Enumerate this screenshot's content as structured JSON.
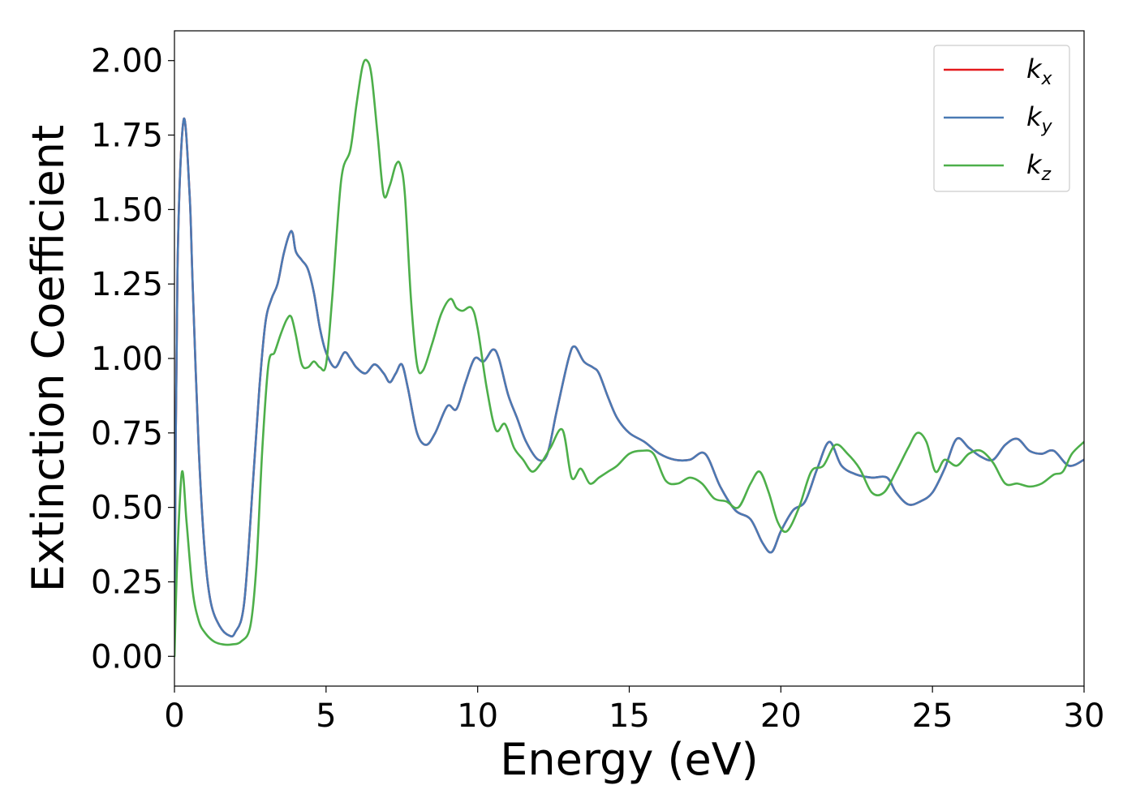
{
  "chart_data": {
    "type": "line",
    "title": "",
    "xlabel": "Energy (eV)",
    "ylabel": "Extinction Coefficient",
    "xlim": [
      0,
      30
    ],
    "ylim": [
      -0.1,
      2.1
    ],
    "xticks": [
      0,
      5,
      10,
      15,
      20,
      25,
      30
    ],
    "xtick_labels": [
      "0",
      "5",
      "10",
      "15",
      "20",
      "25",
      "30"
    ],
    "yticks": [
      0,
      0.25,
      0.5,
      0.75,
      1.0,
      1.25,
      1.5,
      1.75,
      2.0
    ],
    "ytick_labels": [
      "0.00",
      "0.25",
      "0.50",
      "0.75",
      "1.00",
      "1.25",
      "1.50",
      "1.75",
      "2.00"
    ],
    "grid": false,
    "legend_position": "top-right",
    "series": [
      {
        "name": "k_x",
        "legend_main": "k",
        "legend_sub": "x",
        "color": "#e41a1c",
        "x": [
          0,
          0.1,
          0.3,
          0.5,
          0.6,
          0.8,
          1.0,
          1.2,
          1.5,
          1.8,
          2.0,
          2.3,
          2.6,
          2.8,
          3.0,
          3.2,
          3.4,
          3.6,
          3.8,
          3.9,
          4.0,
          4.2,
          4.4,
          4.6,
          4.8,
          5.0,
          5.3,
          5.6,
          5.8,
          6.0,
          6.3,
          6.6,
          6.9,
          7.1,
          7.3,
          7.5,
          7.7,
          8.0,
          8.3,
          8.6,
          9.0,
          9.3,
          9.6,
          9.9,
          10.2,
          10.5,
          10.7,
          11.0,
          11.3,
          11.6,
          12.0,
          12.3,
          12.6,
          13.0,
          13.2,
          13.5,
          13.8,
          14.0,
          14.3,
          14.6,
          15.0,
          15.5,
          16.0,
          16.5,
          17.0,
          17.5,
          18.0,
          18.5,
          19.0,
          19.4,
          19.7,
          20.0,
          20.4,
          20.8,
          21.2,
          21.6,
          22.0,
          22.5,
          23.0,
          23.5,
          23.8,
          24.2,
          24.6,
          25.0,
          25.4,
          25.8,
          26.2,
          26.6,
          27.0,
          27.4,
          27.8,
          28.2,
          28.6,
          29.0,
          29.5,
          30.0
        ],
        "y": [
          0.1,
          1.3,
          1.8,
          1.55,
          1.25,
          0.7,
          0.35,
          0.18,
          0.1,
          0.07,
          0.08,
          0.18,
          0.6,
          0.9,
          1.12,
          1.2,
          1.25,
          1.35,
          1.42,
          1.42,
          1.36,
          1.33,
          1.3,
          1.22,
          1.1,
          1.02,
          0.97,
          1.02,
          1.0,
          0.97,
          0.95,
          0.98,
          0.95,
          0.92,
          0.95,
          0.98,
          0.9,
          0.75,
          0.71,
          0.75,
          0.84,
          0.83,
          0.92,
          1.0,
          0.99,
          1.03,
          1.0,
          0.88,
          0.8,
          0.72,
          0.66,
          0.68,
          0.82,
          1.0,
          1.04,
          0.99,
          0.97,
          0.95,
          0.87,
          0.8,
          0.75,
          0.72,
          0.68,
          0.66,
          0.66,
          0.68,
          0.57,
          0.49,
          0.46,
          0.38,
          0.35,
          0.42,
          0.49,
          0.52,
          0.63,
          0.72,
          0.64,
          0.61,
          0.6,
          0.6,
          0.55,
          0.51,
          0.52,
          0.55,
          0.63,
          0.73,
          0.7,
          0.67,
          0.66,
          0.71,
          0.73,
          0.69,
          0.68,
          0.69,
          0.64,
          0.66
        ]
      },
      {
        "name": "k_y",
        "legend_main": "k",
        "legend_sub": "y",
        "color": "#4a7ab4",
        "x": [
          0,
          0.1,
          0.3,
          0.5,
          0.6,
          0.8,
          1.0,
          1.2,
          1.5,
          1.8,
          2.0,
          2.3,
          2.6,
          2.8,
          3.0,
          3.2,
          3.4,
          3.6,
          3.8,
          3.9,
          4.0,
          4.2,
          4.4,
          4.6,
          4.8,
          5.0,
          5.3,
          5.6,
          5.8,
          6.0,
          6.3,
          6.6,
          6.9,
          7.1,
          7.3,
          7.5,
          7.7,
          8.0,
          8.3,
          8.6,
          9.0,
          9.3,
          9.6,
          9.9,
          10.2,
          10.5,
          10.7,
          11.0,
          11.3,
          11.6,
          12.0,
          12.3,
          12.6,
          13.0,
          13.2,
          13.5,
          13.8,
          14.0,
          14.3,
          14.6,
          15.0,
          15.5,
          16.0,
          16.5,
          17.0,
          17.5,
          18.0,
          18.5,
          19.0,
          19.4,
          19.7,
          20.0,
          20.4,
          20.8,
          21.2,
          21.6,
          22.0,
          22.5,
          23.0,
          23.5,
          23.8,
          24.2,
          24.6,
          25.0,
          25.4,
          25.8,
          26.2,
          26.6,
          27.0,
          27.4,
          27.8,
          28.2,
          28.6,
          29.0,
          29.5,
          30.0
        ],
        "y": [
          0.1,
          1.3,
          1.8,
          1.55,
          1.25,
          0.7,
          0.35,
          0.18,
          0.1,
          0.07,
          0.08,
          0.18,
          0.6,
          0.9,
          1.12,
          1.2,
          1.25,
          1.35,
          1.42,
          1.42,
          1.36,
          1.33,
          1.3,
          1.22,
          1.1,
          1.02,
          0.97,
          1.02,
          1.0,
          0.97,
          0.95,
          0.98,
          0.95,
          0.92,
          0.95,
          0.98,
          0.9,
          0.75,
          0.71,
          0.75,
          0.84,
          0.83,
          0.92,
          1.0,
          0.99,
          1.03,
          1.0,
          0.88,
          0.8,
          0.72,
          0.66,
          0.68,
          0.82,
          1.0,
          1.04,
          0.99,
          0.97,
          0.95,
          0.87,
          0.8,
          0.75,
          0.72,
          0.68,
          0.66,
          0.66,
          0.68,
          0.57,
          0.49,
          0.46,
          0.38,
          0.35,
          0.42,
          0.49,
          0.52,
          0.63,
          0.72,
          0.64,
          0.61,
          0.6,
          0.6,
          0.55,
          0.51,
          0.52,
          0.55,
          0.63,
          0.73,
          0.7,
          0.67,
          0.66,
          0.71,
          0.73,
          0.69,
          0.68,
          0.69,
          0.64,
          0.66
        ]
      },
      {
        "name": "k_z",
        "legend_main": "k",
        "legend_sub": "z",
        "color": "#4daf4a",
        "x": [
          0,
          0.1,
          0.25,
          0.4,
          0.6,
          0.8,
          1.0,
          1.3,
          1.6,
          1.9,
          2.2,
          2.5,
          2.7,
          2.9,
          3.1,
          3.3,
          3.5,
          3.7,
          3.85,
          4.0,
          4.2,
          4.4,
          4.6,
          4.8,
          5.0,
          5.2,
          5.5,
          5.8,
          6.0,
          6.2,
          6.35,
          6.5,
          6.7,
          6.9,
          7.1,
          7.3,
          7.45,
          7.6,
          7.8,
          8.0,
          8.2,
          8.5,
          8.8,
          9.1,
          9.3,
          9.5,
          9.8,
          10.0,
          10.3,
          10.6,
          10.9,
          11.2,
          11.5,
          11.8,
          12.1,
          12.4,
          12.8,
          13.1,
          13.4,
          13.7,
          14.0,
          14.3,
          14.6,
          15.0,
          15.4,
          15.8,
          16.2,
          16.6,
          17.0,
          17.4,
          17.8,
          18.2,
          18.6,
          19.0,
          19.3,
          19.6,
          19.9,
          20.2,
          20.6,
          21.0,
          21.4,
          21.8,
          22.2,
          22.6,
          23.0,
          23.4,
          23.8,
          24.2,
          24.5,
          24.8,
          25.1,
          25.4,
          25.8,
          26.2,
          26.6,
          27.0,
          27.4,
          27.8,
          28.2,
          28.6,
          29.0,
          29.3,
          29.6,
          30.0
        ],
        "y": [
          0.0,
          0.35,
          0.62,
          0.45,
          0.22,
          0.12,
          0.08,
          0.05,
          0.04,
          0.04,
          0.05,
          0.1,
          0.3,
          0.7,
          0.98,
          1.02,
          1.08,
          1.13,
          1.14,
          1.08,
          0.98,
          0.97,
          0.99,
          0.97,
          0.98,
          1.2,
          1.6,
          1.7,
          1.85,
          1.98,
          2.0,
          1.95,
          1.75,
          1.55,
          1.58,
          1.65,
          1.65,
          1.55,
          1.2,
          0.98,
          0.96,
          1.05,
          1.15,
          1.2,
          1.17,
          1.16,
          1.17,
          1.1,
          0.9,
          0.76,
          0.78,
          0.7,
          0.66,
          0.62,
          0.65,
          0.7,
          0.76,
          0.6,
          0.63,
          0.58,
          0.6,
          0.62,
          0.64,
          0.68,
          0.69,
          0.68,
          0.59,
          0.58,
          0.6,
          0.58,
          0.53,
          0.52,
          0.5,
          0.58,
          0.62,
          0.55,
          0.45,
          0.42,
          0.5,
          0.62,
          0.64,
          0.71,
          0.68,
          0.63,
          0.55,
          0.55,
          0.62,
          0.7,
          0.75,
          0.72,
          0.62,
          0.66,
          0.64,
          0.68,
          0.69,
          0.65,
          0.58,
          0.58,
          0.57,
          0.58,
          0.61,
          0.62,
          0.68,
          0.72
        ]
      }
    ]
  }
}
